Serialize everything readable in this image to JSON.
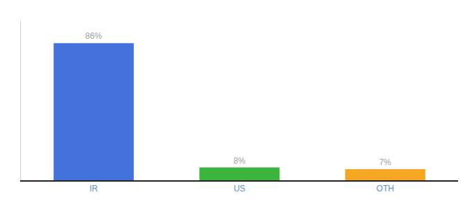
{
  "chart_data": {
    "type": "bar",
    "categories": [
      "IR",
      "US",
      "OTH"
    ],
    "values": [
      86,
      8,
      7
    ],
    "value_labels": [
      "86%",
      "8%",
      "7%"
    ],
    "colors": [
      "#4472db",
      "#3db53d",
      "#f5a623"
    ],
    "ylim": [
      0,
      100
    ],
    "grid": false,
    "data_labels": true,
    "tick_labels": "x"
  }
}
